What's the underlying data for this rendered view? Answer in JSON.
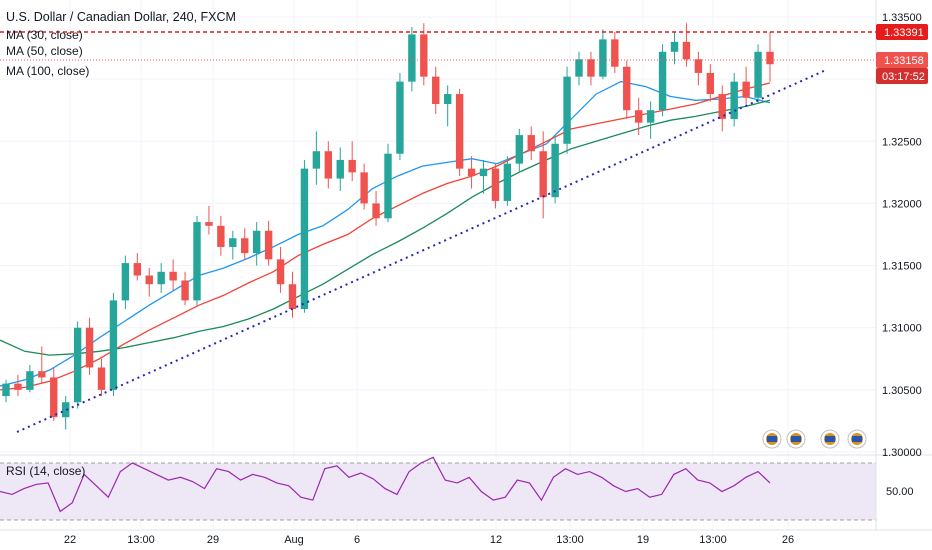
{
  "legend": {
    "title": "U.S. Dollar / Canadian Dollar, 240, FXCM",
    "ma30": "MA (30, close)",
    "ma50": "MA (50, close)",
    "ma100": "MA (100, close)",
    "rsi": "RSI (14, close)"
  },
  "price_tags": {
    "high_level": "1.33391",
    "last_price": "1.33158",
    "countdown": "03:17:52"
  },
  "colors": {
    "up": "#26a69a",
    "down": "#ef5350",
    "ma30": "#2196f3",
    "ma50": "#f44336",
    "ma100": "#1b8a5a",
    "trendline": "#2626b8",
    "resistance": "#e41c1c",
    "rsi_line": "#9c27b0",
    "rsi_band": "#ede7f6",
    "countdown_bg": "#d32f2f"
  },
  "chart_data": [
    {
      "type": "candlestick",
      "title": "U.S. Dollar / Canadian Dollar, 240, FXCM",
      "y_ticks": [
        "1.33500",
        "1.33000",
        "1.32500",
        "1.32000",
        "1.31500",
        "1.31000",
        "1.30500",
        "1.30000"
      ],
      "x_ticks": [
        "22",
        "13:00",
        "29",
        "Aug",
        "6",
        "12",
        "13:00",
        "19",
        "13:00",
        "26"
      ],
      "ylim": [
        1.3,
        1.335
      ],
      "series": [
        {
          "name": "MA (30, close)",
          "y": [
            1.3053,
            1.3058,
            1.3066,
            1.3078,
            1.3092,
            1.3105,
            1.3118,
            1.313,
            1.3142,
            1.3148,
            1.3156,
            1.3165,
            1.3175,
            1.3182,
            1.3195,
            1.3212,
            1.3222,
            1.323,
            1.3233,
            1.3236,
            1.3232,
            1.324,
            1.3248,
            1.3268,
            1.3288,
            1.3298,
            1.3294,
            1.3286,
            1.3283,
            1.3284,
            1.3286,
            1.3281
          ]
        },
        {
          "name": "MA (50, close)",
          "y": [
            1.305,
            1.3052,
            1.3057,
            1.3065,
            1.3075,
            1.3087,
            1.3098,
            1.3108,
            1.3118,
            1.3126,
            1.3136,
            1.3145,
            1.3158,
            1.3167,
            1.3175,
            1.3188,
            1.3198,
            1.3208,
            1.3216,
            1.3222,
            1.323,
            1.324,
            1.325,
            1.326,
            1.3264,
            1.3268,
            1.3272,
            1.3276,
            1.328,
            1.3286,
            1.3292,
            1.3297
          ]
        },
        {
          "name": "MA (100, close)",
          "y": [
            1.309,
            1.3081,
            1.3078,
            1.3079,
            1.3081,
            1.3084,
            1.3088,
            1.3092,
            1.3097,
            1.3101,
            1.3107,
            1.3115,
            1.3125,
            1.3135,
            1.3147,
            1.3159,
            1.3169,
            1.318,
            1.3192,
            1.3205,
            1.3216,
            1.3226,
            1.3235,
            1.3244,
            1.325,
            1.3256,
            1.3262,
            1.3267,
            1.327,
            1.3274,
            1.3278,
            1.3283
          ]
        }
      ],
      "candles": [
        {
          "o": 1.3045,
          "h": 1.3058,
          "l": 1.304,
          "c": 1.3055
        },
        {
          "o": 1.3055,
          "h": 1.3062,
          "l": 1.3045,
          "c": 1.305
        },
        {
          "o": 1.305,
          "h": 1.307,
          "l": 1.3048,
          "c": 1.3065
        },
        {
          "o": 1.3065,
          "h": 1.3085,
          "l": 1.3055,
          "c": 1.306
        },
        {
          "o": 1.306,
          "h": 1.3068,
          "l": 1.3025,
          "c": 1.3028
        },
        {
          "o": 1.3028,
          "h": 1.3045,
          "l": 1.3018,
          "c": 1.304
        },
        {
          "o": 1.304,
          "h": 1.3105,
          "l": 1.3035,
          "c": 1.31
        },
        {
          "o": 1.31,
          "h": 1.3108,
          "l": 1.3062,
          "c": 1.3068
        },
        {
          "o": 1.3068,
          "h": 1.3075,
          "l": 1.3045,
          "c": 1.305
        },
        {
          "o": 1.305,
          "h": 1.3128,
          "l": 1.3045,
          "c": 1.3122
        },
        {
          "o": 1.3122,
          "h": 1.3158,
          "l": 1.3115,
          "c": 1.3152
        },
        {
          "o": 1.3152,
          "h": 1.316,
          "l": 1.3138,
          "c": 1.3142
        },
        {
          "o": 1.3142,
          "h": 1.3148,
          "l": 1.3125,
          "c": 1.3135
        },
        {
          "o": 1.3135,
          "h": 1.3152,
          "l": 1.3128,
          "c": 1.3145
        },
        {
          "o": 1.3145,
          "h": 1.3155,
          "l": 1.313,
          "c": 1.3138
        },
        {
          "o": 1.3138,
          "h": 1.3145,
          "l": 1.3118,
          "c": 1.3122
        },
        {
          "o": 1.3122,
          "h": 1.319,
          "l": 1.3118,
          "c": 1.3185
        },
        {
          "o": 1.3185,
          "h": 1.3198,
          "l": 1.3175,
          "c": 1.3182
        },
        {
          "o": 1.3182,
          "h": 1.319,
          "l": 1.3158,
          "c": 1.3165
        },
        {
          "o": 1.3165,
          "h": 1.3178,
          "l": 1.3155,
          "c": 1.3172
        },
        {
          "o": 1.3172,
          "h": 1.318,
          "l": 1.3155,
          "c": 1.316
        },
        {
          "o": 1.316,
          "h": 1.3185,
          "l": 1.315,
          "c": 1.3178
        },
        {
          "o": 1.3178,
          "h": 1.3186,
          "l": 1.315,
          "c": 1.3155
        },
        {
          "o": 1.3155,
          "h": 1.3165,
          "l": 1.3128,
          "c": 1.3135
        },
        {
          "o": 1.3135,
          "h": 1.3145,
          "l": 1.3108,
          "c": 1.3115
        },
        {
          "o": 1.3115,
          "h": 1.3235,
          "l": 1.3112,
          "c": 1.3228
        },
        {
          "o": 1.3228,
          "h": 1.3258,
          "l": 1.3215,
          "c": 1.3242
        },
        {
          "o": 1.3242,
          "h": 1.325,
          "l": 1.3212,
          "c": 1.322
        },
        {
          "o": 1.322,
          "h": 1.3245,
          "l": 1.321,
          "c": 1.3235
        },
        {
          "o": 1.3235,
          "h": 1.325,
          "l": 1.3218,
          "c": 1.3225
        },
        {
          "o": 1.3225,
          "h": 1.3232,
          "l": 1.3195,
          "c": 1.32
        },
        {
          "o": 1.32,
          "h": 1.321,
          "l": 1.3182,
          "c": 1.3188
        },
        {
          "o": 1.3188,
          "h": 1.3248,
          "l": 1.3185,
          "c": 1.324
        },
        {
          "o": 1.324,
          "h": 1.3305,
          "l": 1.3235,
          "c": 1.3298
        },
        {
          "o": 1.3298,
          "h": 1.3342,
          "l": 1.329,
          "c": 1.3336
        },
        {
          "o": 1.3336,
          "h": 1.3345,
          "l": 1.3295,
          "c": 1.3302
        },
        {
          "o": 1.3302,
          "h": 1.331,
          "l": 1.3272,
          "c": 1.328
        },
        {
          "o": 1.328,
          "h": 1.3295,
          "l": 1.3262,
          "c": 1.3288
        },
        {
          "o": 1.3288,
          "h": 1.3292,
          "l": 1.3222,
          "c": 1.3228
        },
        {
          "o": 1.3228,
          "h": 1.3238,
          "l": 1.3212,
          "c": 1.3222
        },
        {
          "o": 1.3222,
          "h": 1.3235,
          "l": 1.3208,
          "c": 1.3228
        },
        {
          "o": 1.3228,
          "h": 1.3232,
          "l": 1.3196,
          "c": 1.3202
        },
        {
          "o": 1.3202,
          "h": 1.3238,
          "l": 1.3198,
          "c": 1.3232
        },
        {
          "o": 1.3232,
          "h": 1.326,
          "l": 1.3225,
          "c": 1.3255
        },
        {
          "o": 1.3255,
          "h": 1.3262,
          "l": 1.3235,
          "c": 1.3242
        },
        {
          "o": 1.3242,
          "h": 1.3258,
          "l": 1.3188,
          "c": 1.3205
        },
        {
          "o": 1.3205,
          "h": 1.3255,
          "l": 1.32,
          "c": 1.3248
        },
        {
          "o": 1.3248,
          "h": 1.331,
          "l": 1.324,
          "c": 1.3302
        },
        {
          "o": 1.3302,
          "h": 1.3322,
          "l": 1.3295,
          "c": 1.3316
        },
        {
          "o": 1.3316,
          "h": 1.3322,
          "l": 1.3295,
          "c": 1.3302
        },
        {
          "o": 1.3302,
          "h": 1.334,
          "l": 1.33,
          "c": 1.3332
        },
        {
          "o": 1.3332,
          "h": 1.3338,
          "l": 1.3305,
          "c": 1.331
        },
        {
          "o": 1.331,
          "h": 1.3315,
          "l": 1.3268,
          "c": 1.3275
        },
        {
          "o": 1.3275,
          "h": 1.3285,
          "l": 1.3255,
          "c": 1.3265
        },
        {
          "o": 1.3265,
          "h": 1.3282,
          "l": 1.3252,
          "c": 1.3275
        },
        {
          "o": 1.3275,
          "h": 1.3328,
          "l": 1.327,
          "c": 1.3322
        },
        {
          "o": 1.3322,
          "h": 1.3338,
          "l": 1.3312,
          "c": 1.333
        },
        {
          "o": 1.333,
          "h": 1.3345,
          "l": 1.331,
          "c": 1.3316
        },
        {
          "o": 1.3316,
          "h": 1.3322,
          "l": 1.3295,
          "c": 1.3305
        },
        {
          "o": 1.3305,
          "h": 1.3312,
          "l": 1.3282,
          "c": 1.3288
        },
        {
          "o": 1.3288,
          "h": 1.3295,
          "l": 1.3258,
          "c": 1.3268
        },
        {
          "o": 1.3268,
          "h": 1.3305,
          "l": 1.3262,
          "c": 1.3298
        },
        {
          "o": 1.3298,
          "h": 1.331,
          "l": 1.328,
          "c": 1.3285
        },
        {
          "o": 1.3285,
          "h": 1.3328,
          "l": 1.328,
          "c": 1.3322
        },
        {
          "o": 1.3322,
          "h": 1.3338,
          "l": 1.3298,
          "c": 1.3312
        }
      ]
    },
    {
      "type": "line",
      "title": "RSI (14, close)",
      "y_ticks": [
        "50.00"
      ],
      "series": [
        {
          "name": "RSI (14, close)",
          "y": [
            50,
            48,
            52,
            55,
            56,
            36,
            42,
            62,
            54,
            46,
            64,
            70,
            66,
            62,
            58,
            60,
            57,
            52,
            66,
            64,
            58,
            62,
            60,
            56,
            54,
            46,
            44,
            66,
            68,
            60,
            63,
            59,
            52,
            48,
            64,
            70,
            74,
            58,
            56,
            60,
            50,
            44,
            46,
            58,
            56,
            44,
            60,
            66,
            62,
            64,
            60,
            54,
            50,
            52,
            46,
            48,
            62,
            66,
            58,
            56,
            50,
            54,
            60,
            64,
            56
          ]
        }
      ]
    }
  ]
}
